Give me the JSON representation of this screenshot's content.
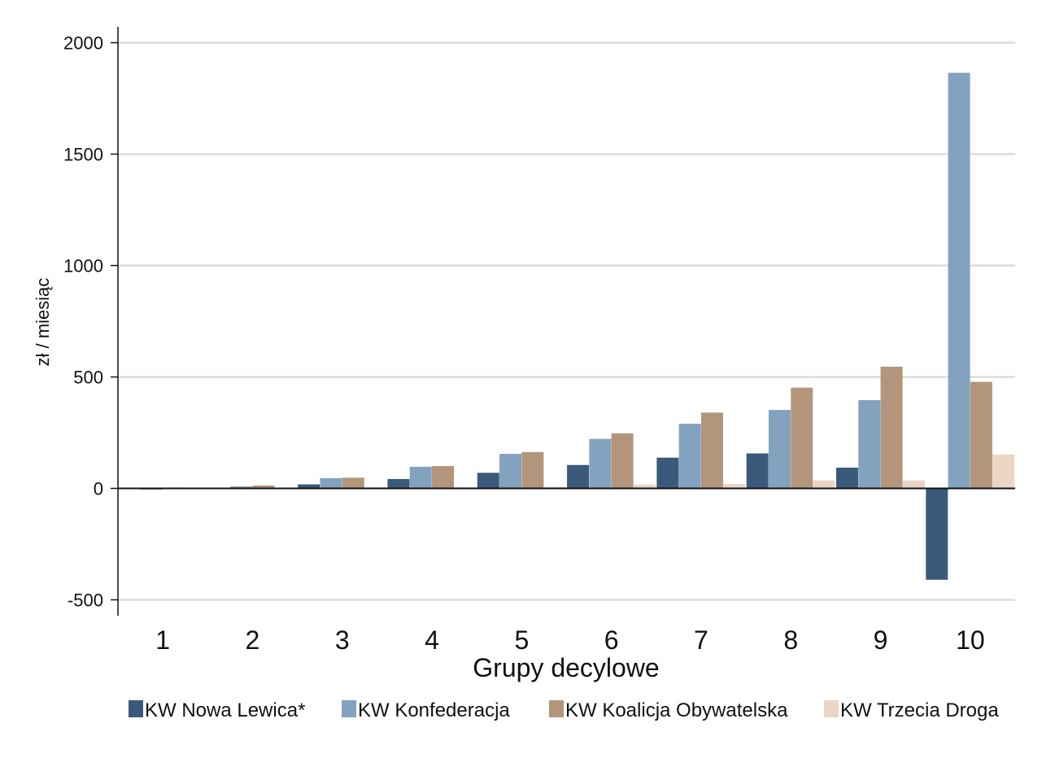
{
  "chart_data": {
    "type": "bar",
    "title": "",
    "xlabel": "Grupy decylowe",
    "ylabel": "zł / miesiąc",
    "categories": [
      "1",
      "2",
      "3",
      "4",
      "5",
      "6",
      "7",
      "8",
      "9",
      "10"
    ],
    "ylim": [
      -550,
      2070
    ],
    "yticks": [
      "-500",
      "0",
      "500",
      "1000",
      "1500",
      "2000"
    ],
    "ytick_values": [
      -500,
      0,
      500,
      1000,
      1500,
      2000
    ],
    "grid": true,
    "legend_position": "bottom",
    "series": [
      {
        "name": "KW Nowa Lewica*",
        "color": "#3b5a7b",
        "values": [
          -3,
          1,
          18,
          42,
          70,
          105,
          138,
          157,
          93,
          -410
        ]
      },
      {
        "name": "KW Konfederacja",
        "color": "#83a2bf",
        "values": [
          -6,
          9,
          46,
          97,
          155,
          222,
          290,
          352,
          396,
          1865
        ]
      },
      {
        "name": "KW Koalicja Obywatelska",
        "color": "#b2957a",
        "values": [
          4,
          13,
          48,
          100,
          163,
          247,
          340,
          452,
          546,
          478
        ]
      },
      {
        "name": "KW Trzecia Droga",
        "color": "#ebd6c6",
        "values": [
          3,
          3,
          5,
          5,
          7,
          17,
          20,
          36,
          36,
          152
        ]
      }
    ]
  }
}
